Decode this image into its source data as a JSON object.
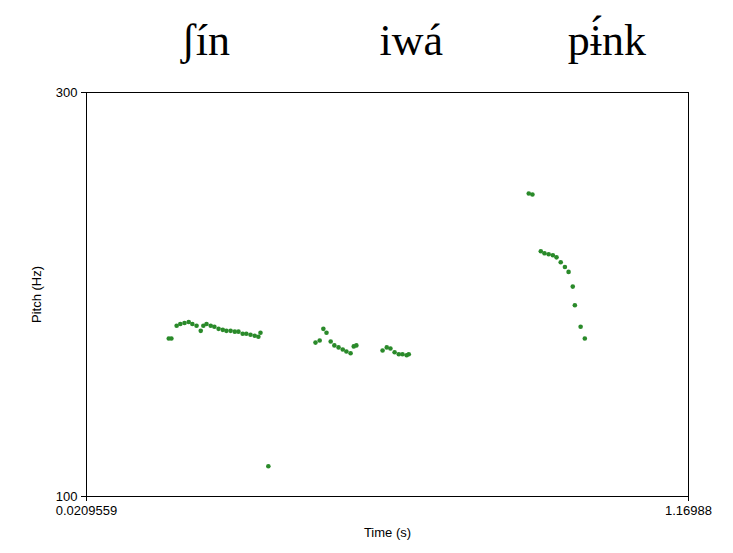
{
  "chart_data": {
    "type": "scatter",
    "x_label": "Time (s)",
    "y_label": "Pitch (Hz)",
    "xlim": [
      0.0209559,
      1.16988
    ],
    "xticks": [
      0.0209559,
      1.16988
    ],
    "ylim": [
      100,
      300
    ],
    "yticks": [
      100,
      300
    ],
    "grid": false,
    "marker": "circle",
    "annotations": [
      {
        "text": "ʃín",
        "x": 0.248
      },
      {
        "text": "iwá",
        "x": 0.641
      },
      {
        "text": "pɨ́nk",
        "x": 1.014
      }
    ],
    "series": [
      {
        "name": "Pitch",
        "color": "#2a8a2a",
        "x": [
          0.178,
          0.183,
          0.193,
          0.2,
          0.208,
          0.216,
          0.223,
          0.231,
          0.239,
          0.244,
          0.25,
          0.258,
          0.265,
          0.273,
          0.281,
          0.288,
          0.296,
          0.304,
          0.311,
          0.319,
          0.326,
          0.334,
          0.342,
          0.349,
          0.353,
          0.368,
          0.458,
          0.466,
          0.473,
          0.479,
          0.487,
          0.494,
          0.502,
          0.51,
          0.517,
          0.525,
          0.531,
          0.536,
          0.586,
          0.594,
          0.601,
          0.609,
          0.617,
          0.624,
          0.632,
          0.636,
          0.865,
          0.872,
          0.888,
          0.895,
          0.903,
          0.911,
          0.918,
          0.926,
          0.934,
          0.941,
          0.949,
          0.953,
          0.964,
          0.972
        ],
        "values": [
          178.2,
          178.2,
          184.5,
          185.4,
          185.9,
          186.4,
          185.4,
          184.5,
          182.0,
          184.5,
          185.4,
          184.5,
          184.0,
          183.0,
          182.5,
          182.0,
          182.0,
          181.6,
          181.6,
          180.6,
          180.6,
          180.1,
          179.6,
          179.1,
          181.1,
          115.0,
          176.2,
          177.2,
          183.0,
          181.1,
          176.7,
          174.8,
          173.8,
          172.8,
          171.8,
          170.9,
          174.3,
          174.8,
          172.3,
          173.8,
          173.3,
          171.4,
          170.4,
          170.4,
          169.9,
          170.4,
          250.0,
          249.5,
          221.4,
          220.4,
          219.9,
          219.4,
          218.4,
          216.0,
          213.6,
          211.2,
          203.9,
          194.7,
          184.0,
          178.2
        ]
      }
    ]
  }
}
